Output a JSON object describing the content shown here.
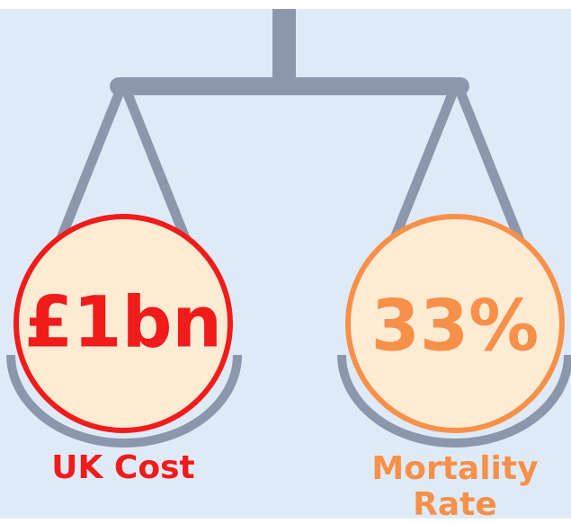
{
  "left": {
    "value": "£1bn",
    "label": "UK Cost"
  },
  "right": {
    "value": "33%",
    "label": "Mortality Rate"
  }
}
